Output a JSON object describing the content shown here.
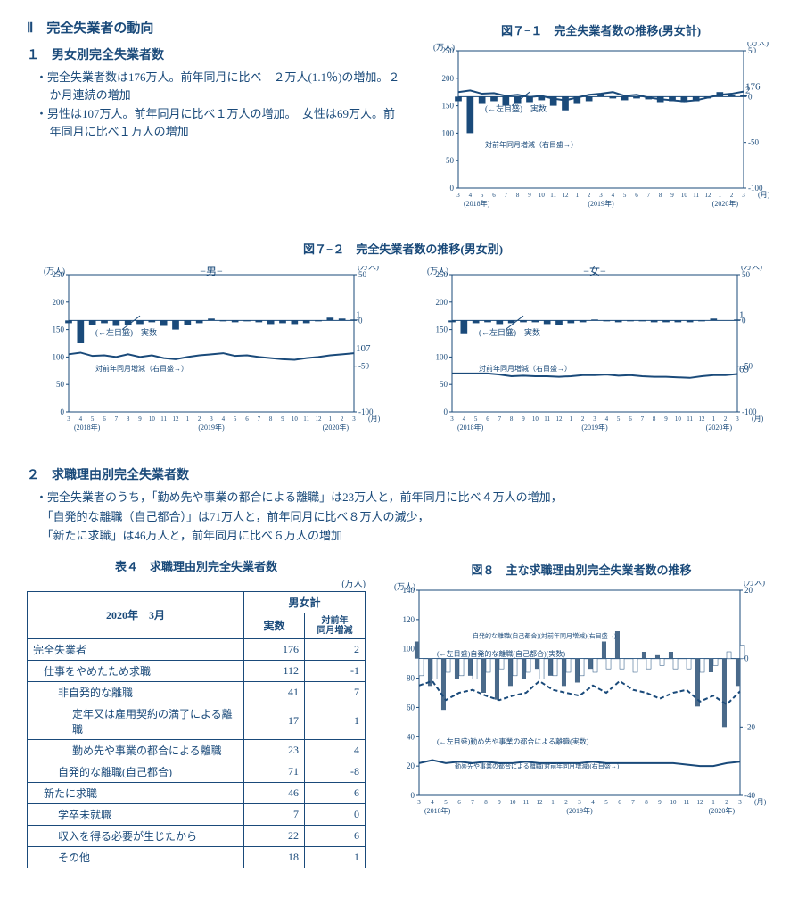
{
  "colors": {
    "main": "#1a4a7a",
    "bg": "#ffffff"
  },
  "section": {
    "title": "Ⅱ　完全失業者の動向"
  },
  "s1": {
    "title": "１　男女別完全失業者数",
    "b1": "・完全失業者数は176万人。前年同月に比べ　２万人(1.1％)の増加。２か月連続の増加",
    "b2": "・男性は107万人。前年同月に比べ１万人の増加。　女性は69万人。前年同月に比べ１万人の増加"
  },
  "s2": {
    "title": "２　求職理由別完全失業者数",
    "b1": "・完全失業者のうち，「勤め先や事業の都合による離職」は23万人と，前年同月に比べ４万人の増加，",
    "b2": "　「自発的な離職（自己都合）」は71万人と，前年同月に比べ８万人の減少，",
    "b3": "　「新たに求職」は46万人と，前年同月に比べ６万人の増加"
  },
  "chart71": {
    "title": "図７−１　完全失業者数の推移(男女計)",
    "unit_l": "(万人)",
    "unit_r": "(万人)",
    "yl_max": 250,
    "yl_step": 50,
    "yr_min": -100,
    "yr_max": 50,
    "yr_step": 50,
    "endval": "176",
    "endbar": "2",
    "line": [
      175,
      178,
      172,
      173,
      168,
      170,
      166,
      168,
      163,
      160,
      165,
      170,
      172,
      175,
      168,
      170,
      165,
      162,
      160,
      158,
      160,
      165,
      170,
      172,
      176
    ],
    "bars": [
      -5,
      -40,
      -8,
      -5,
      -10,
      -8,
      -6,
      -4,
      -10,
      -15,
      -8,
      -5,
      3,
      -2,
      -4,
      -2,
      -3,
      -6,
      -5,
      -6,
      -5,
      -2,
      5,
      2,
      2
    ],
    "anno_l": "(←左目盛)　実数",
    "anno_r": "対前年同月増減（右目盛→）",
    "months": [
      "3",
      "4",
      "5",
      "6",
      "7",
      "8",
      "9",
      "10",
      "11",
      "12",
      "1",
      "2",
      "3",
      "4",
      "5",
      "6",
      "7",
      "8",
      "9",
      "10",
      "11",
      "12",
      "1",
      "2",
      "3"
    ],
    "year_labels": [
      "(2018年)",
      "(2019年)",
      "(2020年)"
    ],
    "x_suffix": "(月)"
  },
  "chart72": {
    "title": "図７−２　完全失業者数の推移(男女別)",
    "male": {
      "sub": "−男−",
      "endval": "107",
      "endbar": "1",
      "line": [
        105,
        108,
        102,
        103,
        100,
        105,
        100,
        103,
        98,
        96,
        100,
        103,
        105,
        107,
        102,
        103,
        100,
        98,
        96,
        95,
        98,
        100,
        103,
        105,
        107
      ],
      "bars": [
        -3,
        -25,
        -5,
        -3,
        -6,
        -5,
        -4,
        -2,
        -6,
        -10,
        -5,
        -3,
        2,
        -1,
        -2,
        -1,
        -2,
        -4,
        -3,
        -4,
        -3,
        -1,
        3,
        2,
        1
      ]
    },
    "female": {
      "sub": "−女−",
      "endval": "69",
      "endbar": "1",
      "line": [
        70,
        70,
        70,
        70,
        68,
        65,
        66,
        65,
        65,
        64,
        65,
        67,
        67,
        68,
        66,
        67,
        65,
        64,
        64,
        63,
        62,
        65,
        67,
        67,
        69
      ],
      "bars": [
        -2,
        -15,
        -3,
        -2,
        -4,
        -3,
        -2,
        -2,
        -4,
        -5,
        -3,
        -2,
        1,
        -1,
        -2,
        -1,
        -1,
        -2,
        -2,
        -2,
        -2,
        -1,
        2,
        0,
        1
      ]
    },
    "unit_l": "(万人)",
    "unit_r": "(万人)",
    "yl_max": 250,
    "yr_min": -100,
    "yr_max": 50,
    "anno_l": "(←左目盛)　実数",
    "anno_r": "対前年同月増減（右目盛→）"
  },
  "table4": {
    "title": "表４　求職理由別完全失業者数",
    "unit": "(万人)",
    "h_period": "2020年　3月",
    "h_group": "男女計",
    "h_c1": "実数",
    "h_c2": "対前年\n同月増減",
    "rows": [
      {
        "label": "完全失業者",
        "indent": 0,
        "v1": "176",
        "v2": "2"
      },
      {
        "label": "仕事をやめたため求職",
        "indent": 1,
        "v1": "112",
        "v2": "-1"
      },
      {
        "label": "非自発的な離職",
        "indent": 2,
        "v1": "41",
        "v2": "7"
      },
      {
        "label": "定年又は雇用契約の満了による離職",
        "indent": 3,
        "v1": "17",
        "v2": "1"
      },
      {
        "label": "勤め先や事業の都合による離職",
        "indent": 3,
        "v1": "23",
        "v2": "4"
      },
      {
        "label": "自発的な離職(自己都合)",
        "indent": 2,
        "v1": "71",
        "v2": "-8"
      },
      {
        "label": "新たに求職",
        "indent": 1,
        "v1": "46",
        "v2": "6"
      },
      {
        "label": "学卒未就職",
        "indent": 2,
        "v1": "7",
        "v2": "0"
      },
      {
        "label": "収入を得る必要が生じたから",
        "indent": 2,
        "v1": "22",
        "v2": "6"
      },
      {
        "label": "その他",
        "indent": 2,
        "v1": "18",
        "v2": "1"
      }
    ]
  },
  "chart8": {
    "title": "図８　主な求職理由別完全失業者数の推移",
    "unit_l": "(万人)",
    "unit_r": "(万人)",
    "yl_max": 140,
    "yl_step": 20,
    "yr_min": -40,
    "yr_max": 20,
    "yr_step": 20,
    "line_dash": [
      75,
      78,
      65,
      70,
      72,
      68,
      65,
      68,
      70,
      78,
      72,
      70,
      68,
      75,
      70,
      78,
      72,
      70,
      66,
      70,
      72,
      64,
      68,
      62,
      71
    ],
    "line_solid": [
      22,
      24,
      22,
      23,
      22,
      23,
      22,
      22,
      23,
      22,
      22,
      22,
      22,
      23,
      22,
      22,
      22,
      22,
      22,
      22,
      21,
      20,
      20,
      22,
      23
    ],
    "bars_dark": [
      5,
      -8,
      -15,
      -6,
      -5,
      -10,
      -12,
      -8,
      -6,
      -3,
      -5,
      -8,
      -7,
      -3,
      5,
      8,
      0,
      2,
      1,
      2,
      0,
      -14,
      -4,
      -20,
      -8
    ],
    "bars_white": [
      -5,
      -6,
      -4,
      -5,
      -6,
      -4,
      -3,
      -5,
      -4,
      -6,
      -5,
      -4,
      -5,
      -4,
      -3,
      -3,
      -4,
      -3,
      -2,
      -3,
      -3,
      -4,
      -2,
      2,
      4
    ],
    "anno1": "(←左目盛)自発的な離職(自己都合)(実数)",
    "anno2": "(←左目盛)勤め先や事業の都合による離職(実数)",
    "anno3": "自発的な離職(自己都合)(対前年同月増減)(右目盛→)",
    "anno4": "勤め先や事業の都合による離職(対前年同月増減)(右目盛→)"
  }
}
